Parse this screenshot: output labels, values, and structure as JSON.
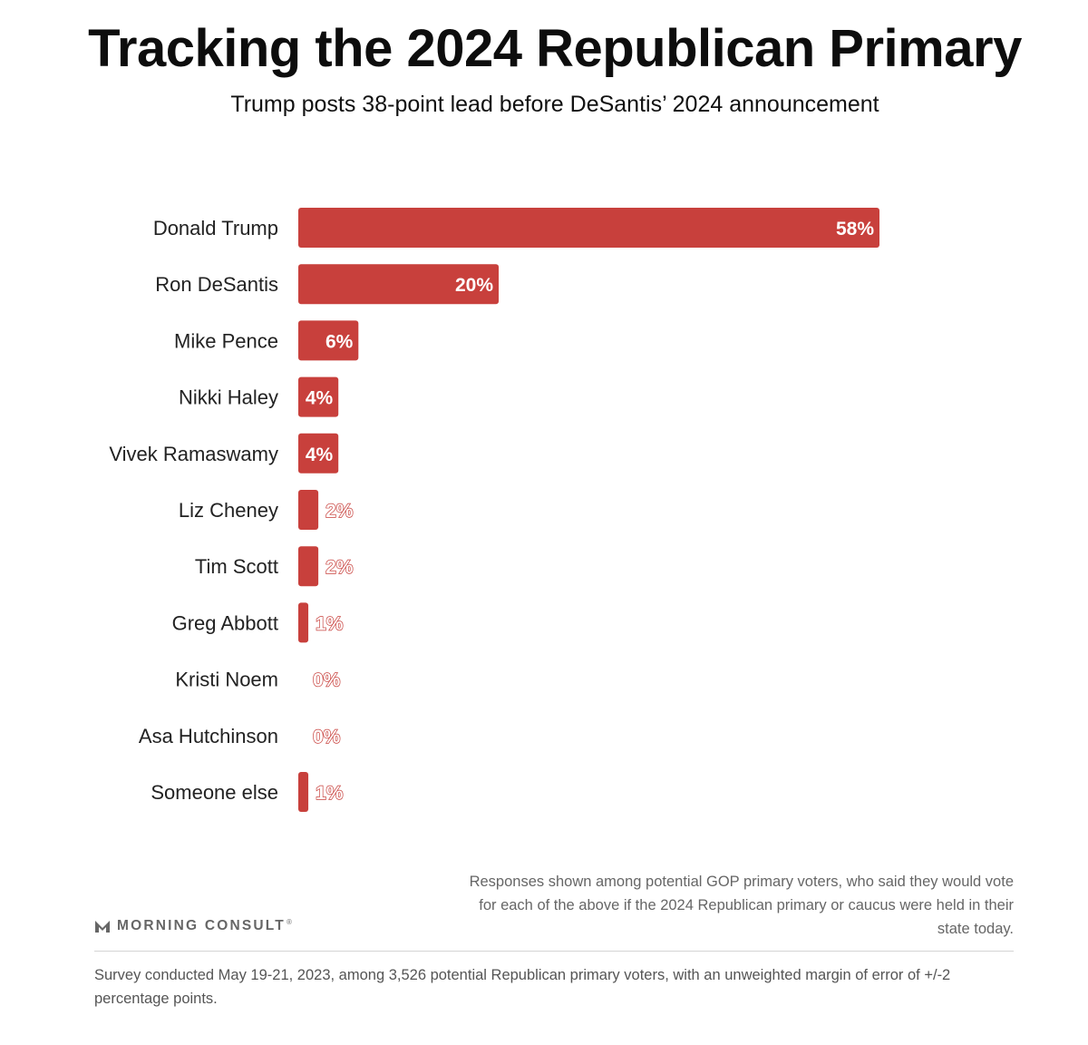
{
  "chart_data": {
    "type": "bar",
    "orientation": "horizontal",
    "title": "Tracking the 2024 Republican Primary",
    "subtitle": "Trump posts 38-point lead before DeSantis’ 2024 announcement",
    "categories": [
      "Donald Trump",
      "Ron DeSantis",
      "Mike Pence",
      "Nikki Haley",
      "Vivek Ramaswamy",
      "Liz Cheney",
      "Tim Scott",
      "Greg Abbott",
      "Kristi Noem",
      "Asa Hutchinson",
      "Someone else"
    ],
    "values": [
      58,
      20,
      6,
      4,
      4,
      2,
      2,
      1,
      0,
      0,
      1
    ],
    "value_labels": [
      "58%",
      "20%",
      "6%",
      "4%",
      "4%",
      "2%",
      "2%",
      "1%",
      "0%",
      "0%",
      "1%"
    ],
    "unit": "%",
    "xlim": [
      0,
      58
    ],
    "bar_color": "#c8403c",
    "grid": false
  },
  "footnote": {
    "responses_note": "Responses shown among potential GOP primary voters, who said they would vote for each of the above if the 2024 Republican primary or caucus were held in their state today.",
    "survey_note": "Survey conducted May 19-21, 2023, among 3,526 potential Republican primary voters, with an unweighted margin of error of +/-2 percentage points."
  },
  "brand": {
    "name": "MORNING CONSULT",
    "registered_mark": "®",
    "logo_icon": "morning-consult-m-icon",
    "color": "#666666"
  }
}
